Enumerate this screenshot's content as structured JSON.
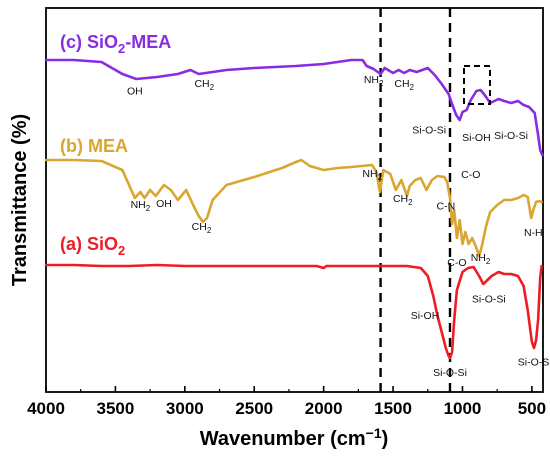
{
  "chart_data": {
    "type": "line",
    "xlabel": "Wavenumber (cm",
    "xlabel_sup": "−1",
    "xlabel_close": ")",
    "ylabel": "Transmittance (%)",
    "xlim": [
      4000,
      420
    ],
    "x_reversed": true,
    "yticks_shown": false,
    "grid": false,
    "xticks": [
      4000,
      3500,
      3000,
      2500,
      2000,
      1500,
      1000,
      500
    ],
    "xtick_labels": [
      "4000",
      "3500",
      "3000",
      "2500",
      "2000",
      "1500",
      "1000",
      "500"
    ],
    "guide_lines": [
      1590,
      1090
    ],
    "series": [
      {
        "key": "c",
        "name_prefix": "(c) SiO",
        "name_sub": "2",
        "name_suffix": "-MEA",
        "color": "#8a2be2",
        "points": [
          [
            4000,
            60
          ],
          [
            3800,
            60
          ],
          [
            3600,
            62
          ],
          [
            3450,
            74
          ],
          [
            3350,
            79
          ],
          [
            3200,
            77
          ],
          [
            3050,
            74
          ],
          [
            2960,
            70
          ],
          [
            2900,
            74
          ],
          [
            2850,
            73
          ],
          [
            2700,
            70
          ],
          [
            2500,
            68
          ],
          [
            2200,
            66
          ],
          [
            2000,
            64
          ],
          [
            1800,
            60
          ],
          [
            1720,
            60
          ],
          [
            1690,
            66
          ],
          [
            1640,
            69
          ],
          [
            1590,
            74
          ],
          [
            1560,
            68
          ],
          [
            1500,
            73
          ],
          [
            1460,
            70
          ],
          [
            1420,
            73
          ],
          [
            1380,
            70
          ],
          [
            1330,
            72
          ],
          [
            1250,
            68
          ],
          [
            1200,
            75
          ],
          [
            1150,
            84
          ],
          [
            1100,
            94
          ],
          [
            1070,
            106
          ],
          [
            1045,
            115
          ],
          [
            1020,
            120
          ],
          [
            1000,
            112
          ],
          [
            970,
            110
          ],
          [
            940,
            100
          ],
          [
            900,
            91
          ],
          [
            870,
            90
          ],
          [
            840,
            95
          ],
          [
            800,
            103
          ],
          [
            770,
            101
          ],
          [
            740,
            99
          ],
          [
            700,
            101
          ],
          [
            650,
            103
          ],
          [
            600,
            101
          ],
          [
            560,
            105
          ],
          [
            520,
            107
          ],
          [
            480,
            113
          ],
          [
            455,
            135
          ],
          [
            440,
            150
          ],
          [
            425,
            155
          ]
        ],
        "annotations": [
          {
            "text": "OH",
            "x": 3360,
            "dy": 16
          },
          {
            "text": "CH2",
            "x": 2860,
            "dy": 14
          },
          {
            "text": "NH2",
            "x": 1640,
            "dy": 14
          },
          {
            "text": "CH2",
            "x": 1420,
            "dy": 14
          },
          {
            "text": "Si-O-Si",
            "x": 1240,
            "dy": 64
          },
          {
            "text": "C-O",
            "x": 940,
            "dy": 78
          },
          {
            "text": "Si-OH",
            "x": 900,
            "dy": 50
          },
          {
            "text": "Si-O-Si",
            "x": 650,
            "dy": 36
          }
        ]
      },
      {
        "key": "b",
        "name_prefix": "(b) MEA",
        "name_sub": "",
        "name_suffix": "",
        "color": "#daa530",
        "points": [
          [
            4000,
            160
          ],
          [
            3800,
            160
          ],
          [
            3600,
            161
          ],
          [
            3450,
            170
          ],
          [
            3360,
            198
          ],
          [
            3320,
            192
          ],
          [
            3290,
            198
          ],
          [
            3250,
            190
          ],
          [
            3210,
            196
          ],
          [
            3150,
            185
          ],
          [
            3100,
            190
          ],
          [
            3050,
            200
          ],
          [
            2990,
            190
          ],
          [
            2940,
            205
          ],
          [
            2900,
            216
          ],
          [
            2870,
            222
          ],
          [
            2840,
            218
          ],
          [
            2800,
            200
          ],
          [
            2700,
            185
          ],
          [
            2500,
            177
          ],
          [
            2300,
            168
          ],
          [
            2200,
            162
          ],
          [
            2160,
            160
          ],
          [
            2100,
            166
          ],
          [
            2000,
            170
          ],
          [
            1900,
            168
          ],
          [
            1800,
            167
          ],
          [
            1650,
            165
          ],
          [
            1620,
            172
          ],
          [
            1595,
            192
          ],
          [
            1570,
            170
          ],
          [
            1520,
            174
          ],
          [
            1480,
            190
          ],
          [
            1440,
            180
          ],
          [
            1400,
            196
          ],
          [
            1380,
            186
          ],
          [
            1340,
            180
          ],
          [
            1300,
            178
          ],
          [
            1260,
            190
          ],
          [
            1220,
            180
          ],
          [
            1180,
            176
          ],
          [
            1130,
            177
          ],
          [
            1110,
            182
          ],
          [
            1090,
            198
          ],
          [
            1075,
            224
          ],
          [
            1060,
            210
          ],
          [
            1040,
            238
          ],
          [
            1020,
            220
          ],
          [
            1000,
            244
          ],
          [
            980,
            232
          ],
          [
            955,
            244
          ],
          [
            930,
            238
          ],
          [
            900,
            248
          ],
          [
            880,
            256
          ],
          [
            860,
            246
          ],
          [
            830,
            226
          ],
          [
            800,
            212
          ],
          [
            750,
            205
          ],
          [
            700,
            200
          ],
          [
            650,
            200
          ],
          [
            600,
            198
          ],
          [
            560,
            195
          ],
          [
            530,
            197
          ],
          [
            505,
            218
          ],
          [
            490,
            210
          ],
          [
            470,
            202
          ],
          [
            450,
            201
          ],
          [
            430,
            202
          ]
        ],
        "annotations": [
          {
            "text": "NH2",
            "x": 3320,
            "dy": 16
          },
          {
            "text": "OH",
            "x": 3150,
            "dy": 22
          },
          {
            "text": "CH2",
            "x": 2880,
            "dy": 10
          },
          {
            "text": "NH2",
            "x": 1650,
            "dy": 12
          },
          {
            "text": "CH2",
            "x": 1430,
            "dy": 18
          },
          {
            "text": "C-N",
            "x": 1120,
            "dy": 30
          },
          {
            "text": "C-O",
            "x": 1040,
            "dy": 28
          },
          {
            "text": "NH2",
            "x": 870,
            "dy": 10
          },
          {
            "text": "N-H",
            "x": 490,
            "dy": 26
          }
        ]
      },
      {
        "key": "a",
        "name_prefix": "(a) SiO",
        "name_sub": "2",
        "name_suffix": "",
        "color": "#ee1c24",
        "points": [
          [
            4000,
            265
          ],
          [
            3800,
            265
          ],
          [
            3600,
            266
          ],
          [
            3400,
            266
          ],
          [
            3200,
            265
          ],
          [
            3000,
            266
          ],
          [
            2800,
            266
          ],
          [
            2500,
            266
          ],
          [
            2200,
            266
          ],
          [
            2050,
            266
          ],
          [
            2000,
            268
          ],
          [
            1980,
            266
          ],
          [
            1800,
            266
          ],
          [
            1600,
            266
          ],
          [
            1400,
            266
          ],
          [
            1300,
            268
          ],
          [
            1250,
            276
          ],
          [
            1210,
            296
          ],
          [
            1180,
            316
          ],
          [
            1150,
            332
          ],
          [
            1120,
            348
          ],
          [
            1100,
            356
          ],
          [
            1090,
            358
          ],
          [
            1075,
            352
          ],
          [
            1060,
            320
          ],
          [
            1040,
            290
          ],
          [
            1000,
            272
          ],
          [
            960,
            268
          ],
          [
            920,
            267
          ],
          [
            880,
            276
          ],
          [
            850,
            284
          ],
          [
            820,
            280
          ],
          [
            790,
            276
          ],
          [
            740,
            272
          ],
          [
            700,
            274
          ],
          [
            650,
            274
          ],
          [
            600,
            276
          ],
          [
            560,
            286
          ],
          [
            530,
            310
          ],
          [
            500,
            342
          ],
          [
            485,
            348
          ],
          [
            470,
            340
          ],
          [
            455,
            320
          ],
          [
            440,
            278
          ],
          [
            430,
            266
          ]
        ],
        "annotations": [
          {
            "text": "Si-OH",
            "x": 1270,
            "dy": 46
          },
          {
            "text": "Si-O-Si",
            "x": 1090,
            "dy": 18
          },
          {
            "text": "Si-O-Si",
            "x": 810,
            "dy": 24
          },
          {
            "text": "Si-O-Si",
            "x": 480,
            "dy": 20
          }
        ]
      }
    ]
  }
}
